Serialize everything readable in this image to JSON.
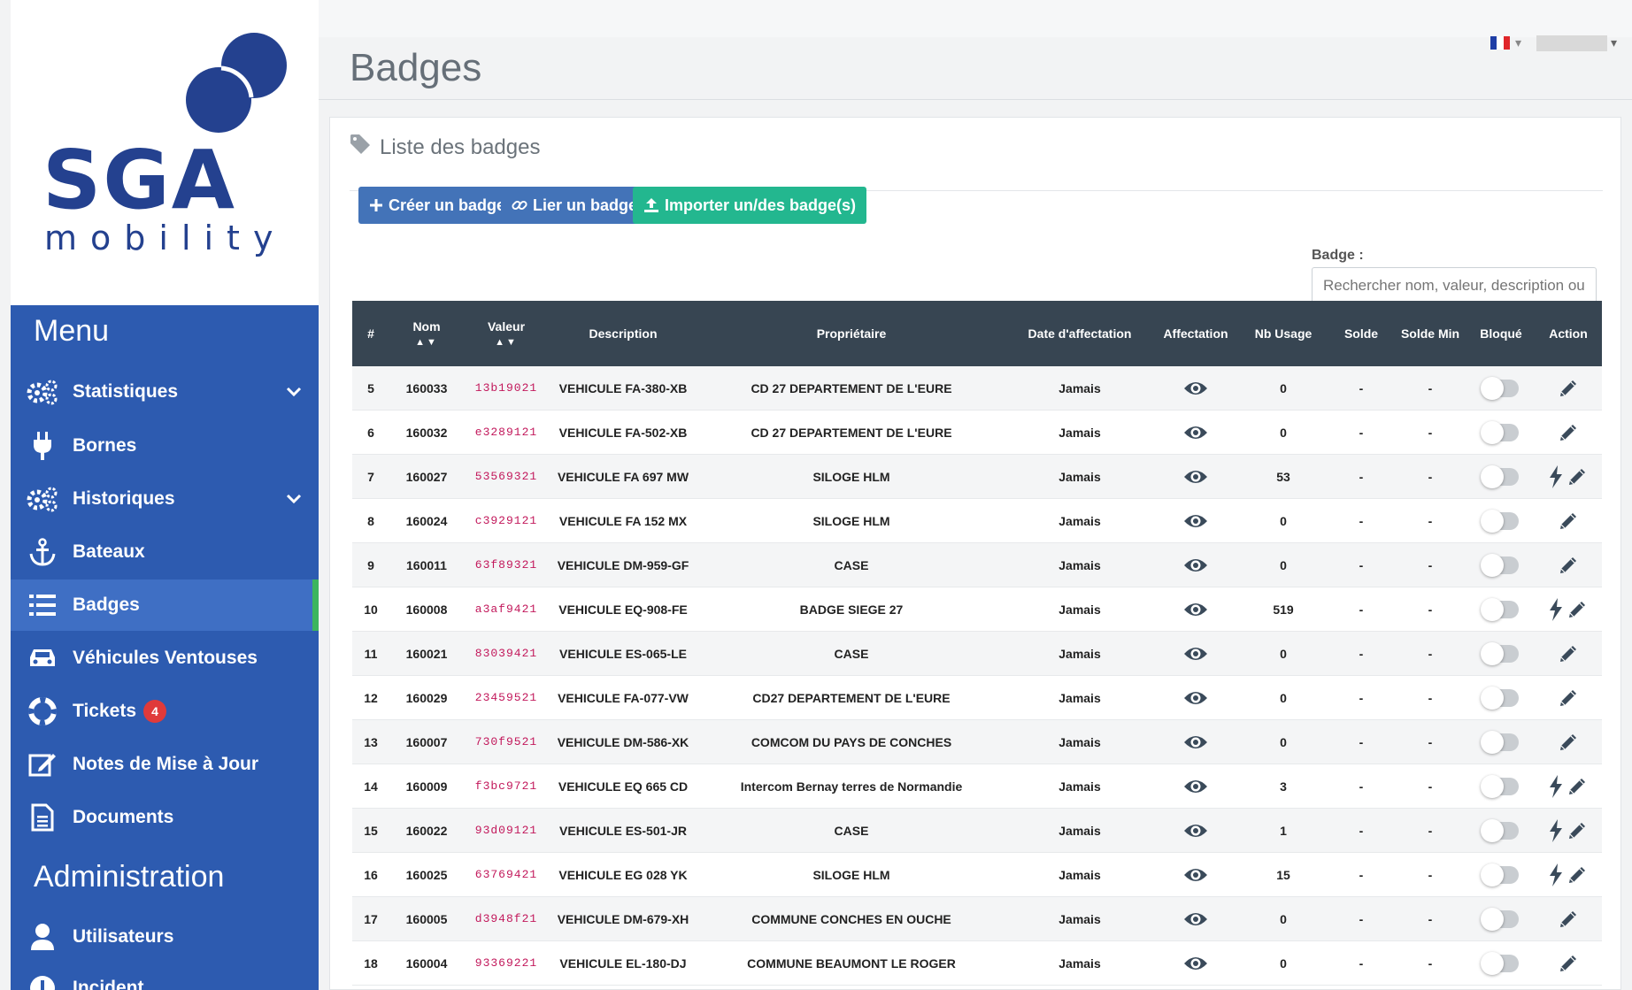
{
  "brand": {
    "logo_main": "SGA",
    "logo_sub": "mobility",
    "color_primary": "#2d5bb0",
    "color_logo": "#24418f"
  },
  "sidebar": {
    "menu_heading": "Menu",
    "admin_heading": "Administration",
    "items": [
      {
        "label": "Statistiques",
        "icon": "cogs-icon",
        "has_chevron": true
      },
      {
        "label": "Bornes",
        "icon": "plug-icon",
        "has_chevron": false
      },
      {
        "label": "Historiques",
        "icon": "cogs-icon",
        "has_chevron": true
      },
      {
        "label": "Bateaux",
        "icon": "anchor-icon",
        "has_chevron": false
      },
      {
        "label": "Badges",
        "icon": "list-icon",
        "has_chevron": false,
        "active": true
      },
      {
        "label": "Véhicules Ventouses",
        "icon": "car-icon",
        "has_chevron": false
      },
      {
        "label": "Tickets",
        "icon": "lifebuoy-icon",
        "has_chevron": false,
        "count": "4"
      },
      {
        "label": "Notes de Mise à Jour",
        "icon": "edit-icon",
        "has_chevron": false
      },
      {
        "label": "Documents",
        "icon": "document-icon",
        "has_chevron": false
      }
    ],
    "admin_items": [
      {
        "label": "Utilisateurs",
        "icon": "user-icon"
      },
      {
        "label": "Incident",
        "icon": "alert-icon"
      }
    ]
  },
  "topbar": {
    "language": "fr",
    "flag_colors": [
      "#1f3ea6",
      "#ffffff",
      "#e0262a"
    ]
  },
  "page": {
    "title": "Badges"
  },
  "panel": {
    "title": "Liste des badges",
    "buttons": {
      "create": "Créer un badge",
      "link": "Lier un badge",
      "import": "Importer un/des badge(s)"
    },
    "search": {
      "label": "Badge :",
      "placeholder": "Rechercher nom, valeur, description ou p"
    }
  },
  "table": {
    "headers": [
      "#",
      "Nom",
      "Valeur",
      "Description",
      "Propriétaire",
      "Date d'affectation",
      "Affectation",
      "Nb Usage",
      "Solde",
      "Solde Min",
      "Bloqué",
      "Action"
    ],
    "rows": [
      {
        "id": "5",
        "nom": "160033",
        "valeur": "13b19021",
        "description": "VEHICULE FA-380-XB",
        "proprietaire": "CD 27 DEPARTEMENT DE L'EURE",
        "date": "Jamais",
        "nb_usage": "0",
        "solde": "-",
        "solde_min": "-",
        "bolt": false
      },
      {
        "id": "6",
        "nom": "160032",
        "valeur": "e3289121",
        "description": "VEHICULE FA-502-XB",
        "proprietaire": "CD 27 DEPARTEMENT DE L'EURE",
        "date": "Jamais",
        "nb_usage": "0",
        "solde": "-",
        "solde_min": "-",
        "bolt": false
      },
      {
        "id": "7",
        "nom": "160027",
        "valeur": "53569321",
        "description": "VEHICULE FA 697 MW",
        "proprietaire": "SILOGE HLM",
        "date": "Jamais",
        "nb_usage": "53",
        "solde": "-",
        "solde_min": "-",
        "bolt": true
      },
      {
        "id": "8",
        "nom": "160024",
        "valeur": "c3929121",
        "description": "VEHICULE FA 152 MX",
        "proprietaire": "SILOGE HLM",
        "date": "Jamais",
        "nb_usage": "0",
        "solde": "-",
        "solde_min": "-",
        "bolt": false
      },
      {
        "id": "9",
        "nom": "160011",
        "valeur": "63f89321",
        "description": "VEHICULE DM-959-GF",
        "proprietaire": "CASE",
        "date": "Jamais",
        "nb_usage": "0",
        "solde": "-",
        "solde_min": "-",
        "bolt": false
      },
      {
        "id": "10",
        "nom": "160008",
        "valeur": "a3af9421",
        "description": "VEHICULE EQ-908-FE",
        "proprietaire": "BADGE SIEGE 27",
        "date": "Jamais",
        "nb_usage": "519",
        "solde": "-",
        "solde_min": "-",
        "bolt": true
      },
      {
        "id": "11",
        "nom": "160021",
        "valeur": "83039421",
        "description": "VEHICULE ES-065-LE",
        "proprietaire": "CASE",
        "date": "Jamais",
        "nb_usage": "0",
        "solde": "-",
        "solde_min": "-",
        "bolt": false
      },
      {
        "id": "12",
        "nom": "160029",
        "valeur": "23459521",
        "description": "VEHICULE FA-077-VW",
        "proprietaire": "CD27 DEPARTEMENT DE L'EURE",
        "date": "Jamais",
        "nb_usage": "0",
        "solde": "-",
        "solde_min": "-",
        "bolt": false
      },
      {
        "id": "13",
        "nom": "160007",
        "valeur": "730f9521",
        "description": "VEHICULE DM-586-XK",
        "proprietaire": "COMCOM DU PAYS DE CONCHES",
        "date": "Jamais",
        "nb_usage": "0",
        "solde": "-",
        "solde_min": "-",
        "bolt": false
      },
      {
        "id": "14",
        "nom": "160009",
        "valeur": "f3bc9721",
        "description": "VEHICULE EQ 665 CD",
        "proprietaire": "Intercom Bernay terres de Normandie",
        "date": "Jamais",
        "nb_usage": "3",
        "solde": "-",
        "solde_min": "-",
        "bolt": true
      },
      {
        "id": "15",
        "nom": "160022",
        "valeur": "93d09121",
        "description": "VEHICULE ES-501-JR",
        "proprietaire": "CASE",
        "date": "Jamais",
        "nb_usage": "1",
        "solde": "-",
        "solde_min": "-",
        "bolt": true
      },
      {
        "id": "16",
        "nom": "160025",
        "valeur": "63769421",
        "description": "VEHICULE EG 028 YK",
        "proprietaire": "SILOGE HLM",
        "date": "Jamais",
        "nb_usage": "15",
        "solde": "-",
        "solde_min": "-",
        "bolt": true
      },
      {
        "id": "17",
        "nom": "160005",
        "valeur": "d3948f21",
        "description": "VEHICULE DM-679-XH",
        "proprietaire": "COMMUNE CONCHES EN OUCHE",
        "date": "Jamais",
        "nb_usage": "0",
        "solde": "-",
        "solde_min": "-",
        "bolt": false
      },
      {
        "id": "18",
        "nom": "160004",
        "valeur": "93369221",
        "description": "VEHICULE EL-180-DJ",
        "proprietaire": "COMMUNE BEAUMONT LE ROGER",
        "date": "Jamais",
        "nb_usage": "0",
        "solde": "-",
        "solde_min": "-",
        "bolt": false
      }
    ]
  }
}
